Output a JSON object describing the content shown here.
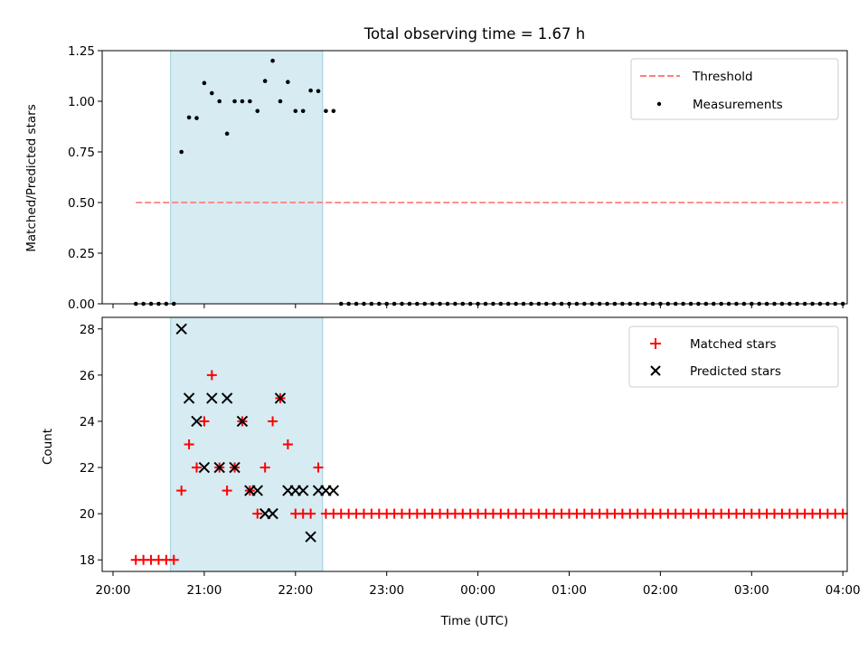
{
  "chart_data": [
    {
      "type": "scatter",
      "title": "Total observing time = 1.67 h",
      "xlabel": "",
      "ylabel": "Matched/Predicted stars",
      "xlim": [
        "20:00",
        "04:10"
      ],
      "ylim": [
        0,
        1.25
      ],
      "y_ticks": [
        "0.00",
        "0.25",
        "0.50",
        "0.75",
        "1.00",
        "1.25"
      ],
      "x_tick_labels_visible": false,
      "highlight_span": [
        "20:45",
        "22:25"
      ],
      "legend_position": "upper right",
      "legend": [
        "Threshold",
        "Measurements"
      ],
      "series": [
        {
          "name": "Threshold",
          "style": "dashed-line",
          "color": "#ff7f7f",
          "x": [
            "20:15",
            "04:00"
          ],
          "values": [
            0.5,
            0.5
          ]
        },
        {
          "name": "Measurements",
          "style": "dot",
          "color": "#000000",
          "x": [
            "20:15",
            "20:20",
            "20:25",
            "20:30",
            "20:35",
            "20:40",
            "20:45",
            "20:50",
            "20:55",
            "21:00",
            "21:05",
            "21:10",
            "21:15",
            "21:20",
            "21:25",
            "21:30",
            "21:35",
            "21:40",
            "21:45",
            "21:50",
            "21:55",
            "22:00",
            "22:05",
            "22:10",
            "22:15",
            "22:20",
            "22:25",
            "22:30",
            "22:35",
            "22:40",
            "22:45",
            "22:50",
            "22:55",
            "23:00",
            "23:05",
            "23:10",
            "23:15",
            "23:20",
            "23:25",
            "23:30",
            "23:35",
            "23:40",
            "23:45",
            "23:50",
            "23:55",
            "00:00",
            "00:05",
            "00:10",
            "00:15",
            "00:20",
            "00:25",
            "00:30",
            "00:35",
            "00:40",
            "00:45",
            "00:50",
            "00:55",
            "01:00",
            "01:05",
            "01:10",
            "01:15",
            "01:20",
            "01:25",
            "01:30",
            "01:35",
            "01:40",
            "01:45",
            "01:50",
            "01:55",
            "02:00",
            "02:05",
            "02:10",
            "02:15",
            "02:20",
            "02:25",
            "02:30",
            "02:35",
            "02:40",
            "02:45",
            "02:50",
            "02:55",
            "03:00",
            "03:05",
            "03:10",
            "03:15",
            "03:20",
            "03:25",
            "03:30",
            "03:35",
            "03:40",
            "03:45",
            "03:50",
            "03:55",
            "04:00"
          ],
          "values": [
            0,
            0,
            0,
            0,
            0,
            0,
            0.75,
            0.92,
            0.917,
            1.09,
            1.04,
            1.0,
            0.84,
            1.0,
            1.0,
            1.0,
            0.952,
            1.1,
            1.2,
            1.0,
            1.095,
            0.952,
            0.952,
            1.053,
            1.05,
            0.952,
            0.952,
            0,
            0,
            0,
            0,
            0,
            0,
            0,
            0,
            0,
            0,
            0,
            0,
            0,
            0,
            0,
            0,
            0,
            0,
            0,
            0,
            0,
            0,
            0,
            0,
            0,
            0,
            0,
            0,
            0,
            0,
            0,
            0,
            0,
            0,
            0,
            0,
            0,
            0,
            0,
            0,
            0,
            0,
            0,
            0,
            0,
            0,
            0,
            0,
            0,
            0,
            0,
            0,
            0,
            0,
            0,
            0,
            0,
            0,
            0,
            0,
            0,
            0,
            0,
            0,
            0,
            0,
            0
          ]
        }
      ]
    },
    {
      "type": "scatter",
      "title": "",
      "xlabel": "Time (UTC)",
      "ylabel": "Count",
      "xlim": [
        "20:00",
        "04:10"
      ],
      "ylim": [
        17.5,
        28.5
      ],
      "y_ticks": [
        "18",
        "20",
        "22",
        "24",
        "26",
        "28"
      ],
      "x_ticks": [
        "20:00",
        "21:00",
        "22:00",
        "23:00",
        "00:00",
        "01:00",
        "02:00",
        "03:00",
        "04:00"
      ],
      "highlight_span": [
        "20:45",
        "22:25"
      ],
      "legend_position": "upper right",
      "legend": [
        "Matched stars",
        "Predicted stars"
      ],
      "series": [
        {
          "name": "Matched stars",
          "marker": "+",
          "color": "#ff0000",
          "x": [
            "20:15",
            "20:20",
            "20:25",
            "20:30",
            "20:35",
            "20:40",
            "20:45",
            "20:50",
            "20:55",
            "21:00",
            "21:05",
            "21:10",
            "21:15",
            "21:20",
            "21:25",
            "21:30",
            "21:35",
            "21:40",
            "21:45",
            "21:50",
            "21:55",
            "22:00",
            "22:05",
            "22:10",
            "22:15",
            "22:20",
            "22:25",
            "22:30",
            "22:35",
            "22:40",
            "22:45",
            "22:50",
            "22:55",
            "23:00",
            "23:05",
            "23:10",
            "23:15",
            "23:20",
            "23:25",
            "23:30",
            "23:35",
            "23:40",
            "23:45",
            "23:50",
            "23:55",
            "00:00",
            "00:05",
            "00:10",
            "00:15",
            "00:20",
            "00:25",
            "00:30",
            "00:35",
            "00:40",
            "00:45",
            "00:50",
            "00:55",
            "01:00",
            "01:05",
            "01:10",
            "01:15",
            "01:20",
            "01:25",
            "01:30",
            "01:35",
            "01:40",
            "01:45",
            "01:50",
            "01:55",
            "02:00",
            "02:05",
            "02:10",
            "02:15",
            "02:20",
            "02:25",
            "02:30",
            "02:35",
            "02:40",
            "02:45",
            "02:50",
            "02:55",
            "03:00",
            "03:05",
            "03:10",
            "03:15",
            "03:20",
            "03:25",
            "03:30",
            "03:35",
            "03:40",
            "03:45",
            "03:50",
            "03:55",
            "04:00"
          ],
          "values": [
            18,
            18,
            18,
            18,
            18,
            18,
            21,
            23,
            22,
            24,
            26,
            22,
            21,
            22,
            24,
            21,
            20,
            22,
            24,
            25,
            23,
            20,
            20,
            20,
            22,
            20,
            20,
            20,
            20,
            20,
            20,
            20,
            20,
            20,
            20,
            20,
            20,
            20,
            20,
            20,
            20,
            20,
            20,
            20,
            20,
            20,
            20,
            20,
            20,
            20,
            20,
            20,
            20,
            20,
            20,
            20,
            20,
            20,
            20,
            20,
            20,
            20,
            20,
            20,
            20,
            20,
            20,
            20,
            20,
            20,
            20,
            20,
            20,
            20,
            20,
            20,
            20,
            20,
            20,
            20,
            20,
            20,
            20,
            20,
            20,
            20,
            20,
            20,
            20,
            20,
            20,
            20,
            20,
            20
          ]
        },
        {
          "name": "Predicted stars",
          "marker": "x",
          "color": "#000000",
          "x": [
            "20:45",
            "20:50",
            "20:55",
            "21:00",
            "21:05",
            "21:10",
            "21:15",
            "21:20",
            "21:25",
            "21:30",
            "21:35",
            "21:40",
            "21:45",
            "21:50",
            "21:55",
            "22:00",
            "22:05",
            "22:10",
            "22:15",
            "22:20",
            "22:25"
          ],
          "values": [
            28,
            25,
            24,
            22,
            25,
            22,
            25,
            22,
            24,
            21,
            21,
            20,
            20,
            25,
            21,
            21,
            21,
            19,
            21,
            21,
            21
          ]
        }
      ]
    }
  ]
}
